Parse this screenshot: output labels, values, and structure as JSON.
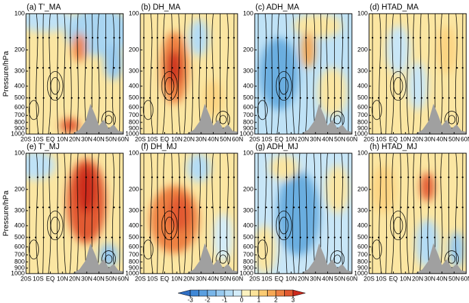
{
  "chart_data": [
    {
      "type": "contour",
      "title": "(a) T'_MA",
      "ylabel": "Pressure/hPa",
      "log_y": true,
      "xlim": [
        -20,
        60
      ],
      "xticks": [
        {
          "value": -20,
          "label": "20S"
        },
        {
          "value": -10,
          "label": "10S"
        },
        {
          "value": 0,
          "label": "EQ"
        },
        {
          "value": 10,
          "label": "10N"
        },
        {
          "value": 20,
          "label": "20N"
        },
        {
          "value": 30,
          "label": "30N"
        },
        {
          "value": 40,
          "label": "40N"
        },
        {
          "value": 50,
          "label": "50N"
        },
        {
          "value": 60,
          "label": "60N"
        }
      ],
      "ylim": [
        1000,
        100
      ],
      "yticks": [
        100,
        200,
        300,
        400,
        500,
        600,
        700,
        800,
        900,
        1000
      ]
    },
    {
      "type": "contour",
      "title": "(b) DH_MA",
      "log_y": true,
      "xlim": [
        -20,
        60
      ],
      "xticks": [
        {
          "value": -20,
          "label": "20S"
        },
        {
          "value": -10,
          "label": "10S"
        },
        {
          "value": 0,
          "label": "EQ"
        },
        {
          "value": 10,
          "label": "10N"
        },
        {
          "value": 20,
          "label": "20N"
        },
        {
          "value": 30,
          "label": "30N"
        },
        {
          "value": 40,
          "label": "40N"
        },
        {
          "value": 50,
          "label": "50N"
        },
        {
          "value": 60,
          "label": "60N"
        }
      ],
      "ylim": [
        1000,
        100
      ],
      "yticks": [
        100,
        200,
        300,
        400,
        500,
        600,
        700,
        800,
        900,
        1000
      ]
    },
    {
      "type": "contour",
      "title": "(c) ADH_MA",
      "log_y": true,
      "xlim": [
        -20,
        60
      ],
      "xticks": [
        {
          "value": -20,
          "label": "20S"
        },
        {
          "value": -10,
          "label": "10S"
        },
        {
          "value": 0,
          "label": "EQ"
        },
        {
          "value": 10,
          "label": "10N"
        },
        {
          "value": 20,
          "label": "20N"
        },
        {
          "value": 30,
          "label": "30N"
        },
        {
          "value": 40,
          "label": "40N"
        },
        {
          "value": 50,
          "label": "50N"
        },
        {
          "value": 60,
          "label": "60N"
        }
      ],
      "ylim": [
        1000,
        100
      ],
      "yticks": [
        100,
        200,
        300,
        400,
        500,
        600,
        700,
        800,
        900,
        1000
      ]
    },
    {
      "type": "contour",
      "title": "(d) HTAD_MA",
      "log_y": true,
      "xlim": [
        -20,
        60
      ],
      "xticks": [
        {
          "value": -20,
          "label": "20S"
        },
        {
          "value": -10,
          "label": "10S"
        },
        {
          "value": 0,
          "label": "EQ"
        },
        {
          "value": 10,
          "label": "10N"
        },
        {
          "value": 20,
          "label": "20N"
        },
        {
          "value": 30,
          "label": "30N"
        },
        {
          "value": 40,
          "label": "40N"
        },
        {
          "value": 50,
          "label": "50N"
        },
        {
          "value": 60,
          "label": "60N"
        }
      ],
      "ylim": [
        1000,
        100
      ],
      "yticks": [
        100,
        200,
        300,
        400,
        500,
        600,
        700,
        800,
        900,
        1000
      ]
    },
    {
      "type": "contour",
      "title": "(e) T'_MJ",
      "ylabel": "Pressure/hPa",
      "log_y": true,
      "xlim": [
        -20,
        60
      ],
      "xticks": [
        {
          "value": -20,
          "label": "20S"
        },
        {
          "value": -10,
          "label": "10S"
        },
        {
          "value": 0,
          "label": "EQ"
        },
        {
          "value": 10,
          "label": "10N"
        },
        {
          "value": 20,
          "label": "20N"
        },
        {
          "value": 30,
          "label": "30N"
        },
        {
          "value": 40,
          "label": "40N"
        },
        {
          "value": 50,
          "label": "50N"
        },
        {
          "value": 60,
          "label": "60N"
        }
      ],
      "ylim": [
        1000,
        100
      ],
      "yticks": [
        100,
        200,
        300,
        400,
        500,
        600,
        700,
        800,
        900,
        1000
      ]
    },
    {
      "type": "contour",
      "title": "(f) DH_MJ",
      "log_y": true,
      "xlim": [
        -20,
        60
      ],
      "xticks": [
        {
          "value": -20,
          "label": "20S"
        },
        {
          "value": -10,
          "label": "10S"
        },
        {
          "value": 0,
          "label": "EQ"
        },
        {
          "value": 10,
          "label": "10N"
        },
        {
          "value": 20,
          "label": "20N"
        },
        {
          "value": 30,
          "label": "30N"
        },
        {
          "value": 40,
          "label": "40N"
        },
        {
          "value": 50,
          "label": "50N"
        },
        {
          "value": 60,
          "label": "60N"
        }
      ],
      "ylim": [
        1000,
        100
      ],
      "yticks": [
        100,
        200,
        300,
        400,
        500,
        600,
        700,
        800,
        900,
        1000
      ]
    },
    {
      "type": "contour",
      "title": "(g) ADH_MJ",
      "log_y": true,
      "xlim": [
        -20,
        60
      ],
      "xticks": [
        {
          "value": -20,
          "label": "20S"
        },
        {
          "value": -10,
          "label": "10S"
        },
        {
          "value": 0,
          "label": "EQ"
        },
        {
          "value": 10,
          "label": "10N"
        },
        {
          "value": 20,
          "label": "20N"
        },
        {
          "value": 30,
          "label": "30N"
        },
        {
          "value": 40,
          "label": "40N"
        },
        {
          "value": 50,
          "label": "50N"
        },
        {
          "value": 60,
          "label": "60N"
        }
      ],
      "ylim": [
        1000,
        100
      ],
      "yticks": [
        100,
        200,
        300,
        400,
        500,
        600,
        700,
        800,
        900,
        1000
      ]
    },
    {
      "type": "contour",
      "title": "(h) HTAD_MJ",
      "log_y": true,
      "xlim": [
        -20,
        60
      ],
      "xticks": [
        {
          "value": -20,
          "label": "20S"
        },
        {
          "value": -10,
          "label": "10S"
        },
        {
          "value": 0,
          "label": "EQ"
        },
        {
          "value": 10,
          "label": "10N"
        },
        {
          "value": 20,
          "label": "20N"
        },
        {
          "value": 30,
          "label": "30N"
        },
        {
          "value": 40,
          "label": "40N"
        },
        {
          "value": 50,
          "label": "50N"
        },
        {
          "value": 60,
          "label": "60N"
        }
      ],
      "ylim": [
        1000,
        100
      ],
      "yticks": [
        100,
        200,
        300,
        400,
        500,
        600,
        700,
        800,
        900,
        1000
      ]
    }
  ],
  "colorbar": {
    "lim": [
      -3,
      3
    ],
    "ticks": [
      -3,
      -2,
      -1,
      0,
      1,
      2,
      3
    ],
    "colors": [
      "#2f6fc4",
      "#3f88d6",
      "#5a9fe0",
      "#78b5e8",
      "#97c9ef",
      "#b4dcf5",
      "#d3ecf9",
      "#fdf2c0",
      "#fce39a",
      "#fbcb72",
      "#f6a855",
      "#ee8142",
      "#e25a31",
      "#cc2a1e"
    ]
  }
}
